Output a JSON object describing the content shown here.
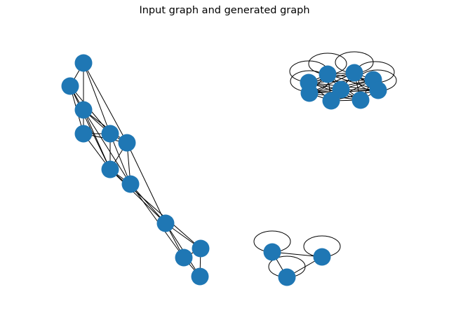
{
  "title": "Input graph and generated graph",
  "node_color": "#1f77b4",
  "edge_color": "#000000"
}
